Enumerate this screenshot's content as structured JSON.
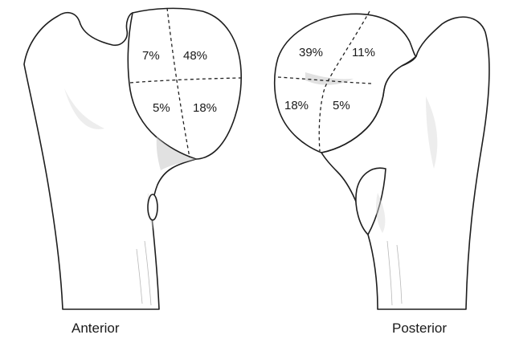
{
  "views": [
    {
      "label": "Anterior",
      "quadrants": [
        "7%",
        "48%",
        "5%",
        "18%"
      ]
    },
    {
      "label": "Posterior",
      "quadrants": [
        "39%",
        "11%",
        "18%",
        "5%"
      ]
    }
  ]
}
